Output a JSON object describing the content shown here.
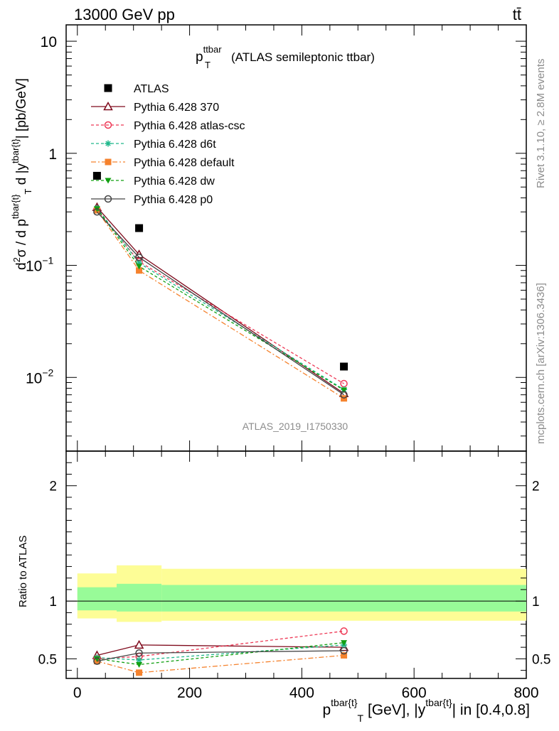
{
  "header": {
    "energy": "13000 GeV pp",
    "process": "tt̄",
    "plot_title_main": "p",
    "plot_title_sup": "ttbar",
    "plot_title_sub": "T",
    "plot_title_rest": "(ATLAS semileptonic ttbar)",
    "watermark": "ATLAS_2019_I1750330",
    "side_top": "Rivet 3.1.10, ≥ 2.8M events",
    "side_bottom": "mcplots.cern.ch [arXiv:1306.3436]"
  },
  "chart_data": [
    {
      "type": "line",
      "name": "main",
      "ylabel": "d²σ / d p^{tbar{t}}_T d |y^{tbar{t}}| [pb/GeV]",
      "yscale": "log",
      "ylim": [
        0.0022,
        14
      ],
      "yticks": [
        {
          "value": 0.01,
          "base": "10",
          "exp": "−2"
        },
        {
          "value": 0.1,
          "base": "10",
          "exp": "−1"
        },
        {
          "value": 1,
          "base": "1",
          "exp": ""
        },
        {
          "value": 10,
          "base": "10",
          "exp": ""
        }
      ],
      "xlim": [
        -20,
        800
      ],
      "x": [
        35,
        110,
        475
      ],
      "series": [
        {
          "name": "ATLAS",
          "color": "#000000",
          "marker": "square",
          "dash": "",
          "values": [
            0.63,
            0.215,
            0.0125
          ]
        },
        {
          "name": "Pythia 6.428 370",
          "color": "#7f0a1c",
          "marker": "triangle-open",
          "dash": "",
          "values": [
            0.33,
            0.125,
            0.0072
          ]
        },
        {
          "name": "Pythia 6.428 atlas-csc",
          "color": "#ee3855",
          "marker": "circle-open",
          "dash": "4,3",
          "values": [
            0.315,
            0.108,
            0.0088
          ]
        },
        {
          "name": "Pythia 6.428 d6t",
          "color": "#20b88c",
          "marker": "star",
          "dash": "4,3",
          "values": [
            0.325,
            0.105,
            0.0078
          ]
        },
        {
          "name": "Pythia 6.428 default",
          "color": "#f5822d",
          "marker": "square",
          "dash": "7,3,2,3",
          "values": [
            0.31,
            0.09,
            0.0065
          ]
        },
        {
          "name": "Pythia 6.428 dw",
          "color": "#12a012",
          "marker": "triangle-down",
          "dash": "4,3",
          "values": [
            0.32,
            0.098,
            0.0077
          ]
        },
        {
          "name": "Pythia 6.428 p0",
          "color": "#444444",
          "marker": "circle-open",
          "dash": "",
          "values": [
            0.3,
            0.118,
            0.007
          ]
        }
      ]
    },
    {
      "type": "line",
      "name": "ratio",
      "ylabel": "Ratio to ATLAS",
      "ylim": [
        0.33,
        2.3
      ],
      "yticks": [
        0.5,
        1,
        2
      ],
      "xlim": [
        -20,
        800
      ],
      "xticks": [
        0,
        200,
        400,
        600,
        800
      ],
      "xlabel": "p^{tbar{t}}_T [GeV], |y^{tbar{t}}| in [0.4,0.8]",
      "bands": [
        {
          "x0": 0,
          "x1": 70,
          "yellow": [
            0.85,
            1.24
          ],
          "green": [
            0.92,
            1.12
          ]
        },
        {
          "x0": 70,
          "x1": 150,
          "yellow": [
            0.82,
            1.31
          ],
          "green": [
            0.91,
            1.15
          ]
        },
        {
          "x0": 150,
          "x1": 800,
          "yellow": [
            0.83,
            1.28
          ],
          "green": [
            0.91,
            1.14
          ]
        }
      ],
      "x": [
        35,
        110,
        475
      ],
      "series": [
        {
          "name": "Pythia 6.428 370",
          "values": [
            0.53,
            0.62,
            0.6
          ]
        },
        {
          "name": "Pythia 6.428 atlas-csc",
          "values": [
            0.5,
            0.52,
            0.74
          ]
        },
        {
          "name": "Pythia 6.428 d6t",
          "values": [
            0.51,
            0.49,
            0.62
          ]
        },
        {
          "name": "Pythia 6.428 default",
          "values": [
            0.48,
            0.38,
            0.53
          ]
        },
        {
          "name": "Pythia 6.428 dw",
          "values": [
            0.5,
            0.45,
            0.64
          ]
        },
        {
          "name": "Pythia 6.428 p0",
          "values": [
            0.48,
            0.55,
            0.57
          ]
        }
      ]
    }
  ]
}
